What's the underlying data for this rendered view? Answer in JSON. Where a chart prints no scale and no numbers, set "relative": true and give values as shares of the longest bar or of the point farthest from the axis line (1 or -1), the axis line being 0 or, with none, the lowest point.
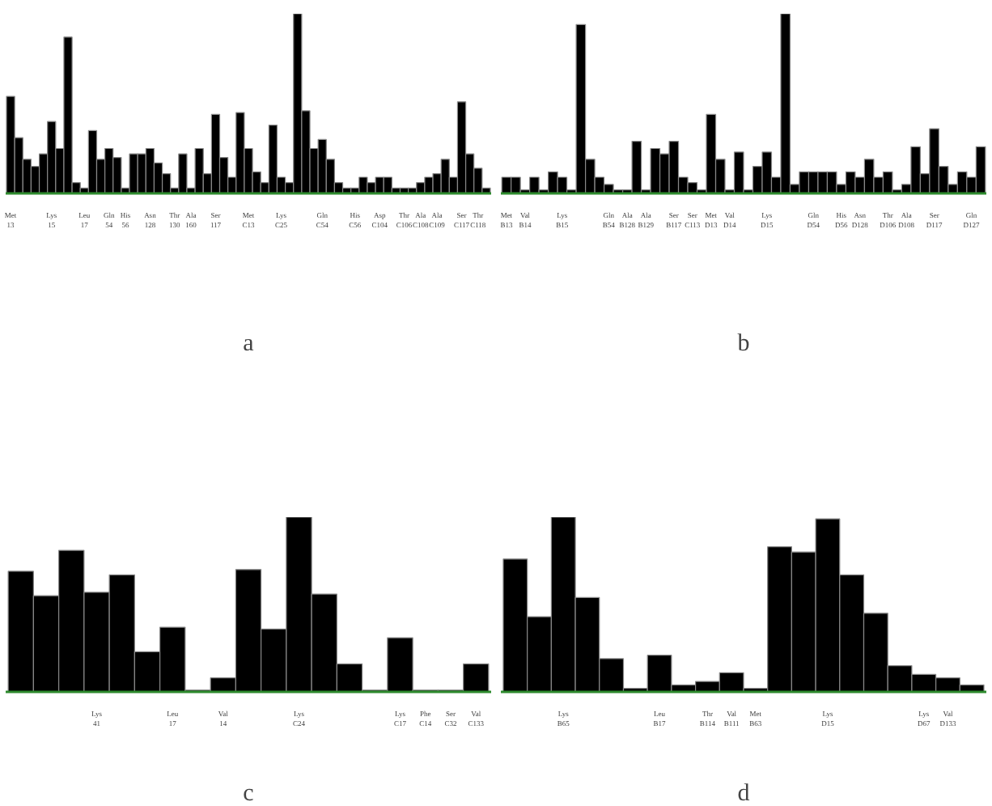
{
  "chart_data": [
    {
      "type": "bar",
      "title": "a",
      "relative": true,
      "color": "#000000",
      "categories": [
        "Met\n13",
        null,
        null,
        null,
        null,
        "Lys\n15",
        null,
        null,
        null,
        "Leu\n17",
        null,
        null,
        "Gln\n54",
        null,
        "His\n56",
        null,
        null,
        "Asn\n128",
        null,
        null,
        "Thr\n130",
        null,
        "Ala\n160",
        null,
        null,
        "Ser\n117",
        null,
        null,
        null,
        "Met\nC13",
        null,
        null,
        null,
        "Lys\nC25",
        null,
        null,
        null,
        null,
        "Gln\nC54",
        null,
        null,
        null,
        "His\nC56",
        null,
        null,
        "Asp\nC104",
        null,
        null,
        "Thr\nC106",
        null,
        "Ala\nC108",
        null,
        "Ala\nC109",
        null,
        null,
        "Ser\nC117",
        null,
        "Thr\nC118",
        null
      ],
      "values": [
        0.54,
        0.31,
        0.19,
        0.15,
        0.22,
        0.4,
        0.25,
        0.87,
        0.06,
        0.03,
        0.35,
        0.19,
        0.25,
        0.2,
        0.03,
        0.22,
        0.22,
        0.25,
        0.17,
        0.11,
        0.03,
        0.22,
        0.03,
        0.25,
        0.11,
        0.44,
        0.2,
        0.09,
        0.45,
        0.25,
        0.12,
        0.06,
        0.38,
        0.09,
        0.06,
        1,
        0.46,
        0.25,
        0.3,
        0.19,
        0.06,
        0.03,
        0.03,
        0.09,
        0.06,
        0.09,
        0.09,
        0.03,
        0.03,
        0.03,
        0.06,
        0.09,
        0.11,
        0.19,
        0.09,
        0.51,
        0.22,
        0.14,
        0.03
      ]
    },
    {
      "type": "bar",
      "title": "b",
      "relative": true,
      "color": "#000000",
      "categories": [
        "Met\nB13",
        null,
        "Val\nB14",
        null,
        null,
        null,
        "Lys\nB15",
        null,
        null,
        null,
        null,
        "Gln\nB54",
        null,
        "Ala\nB128",
        null,
        "Ala\nB129",
        null,
        null,
        "Ser\nB117",
        null,
        "Ser\nC113",
        null,
        "Met\nD13",
        null,
        "Val\nD14",
        null,
        null,
        null,
        "Lys\nD15",
        null,
        null,
        null,
        null,
        "Gln\nD54",
        null,
        null,
        "His\nD56",
        null,
        "Asn\nD128",
        null,
        null,
        "Thr\nD106",
        null,
        "Ala\nD108",
        null,
        null,
        "Ser\nD117",
        null,
        null,
        null,
        "Gln\nD127",
        null
      ],
      "values": [
        0.09,
        0.09,
        0.02,
        0.09,
        0.02,
        0.12,
        0.09,
        0.02,
        0.94,
        0.19,
        0.09,
        0.05,
        0.02,
        0.02,
        0.29,
        0.02,
        0.25,
        0.22,
        0.29,
        0.09,
        0.06,
        0.02,
        0.44,
        0.19,
        0.02,
        0.23,
        0.02,
        0.15,
        0.23,
        0.09,
        1,
        0.05,
        0.12,
        0.12,
        0.12,
        0.12,
        0.05,
        0.12,
        0.09,
        0.19,
        0.09,
        0.12,
        0.02,
        0.05,
        0.26,
        0.11,
        0.36,
        0.15,
        0.05,
        0.12,
        0.09,
        0.26
      ]
    },
    {
      "type": "bar",
      "title": "c",
      "relative": true,
      "color": "#000000",
      "categories": [
        null,
        null,
        null,
        "Lys\n41",
        null,
        null,
        "Leu\n17",
        null,
        "Val\n14",
        null,
        null,
        "Lys\nC24",
        null,
        null,
        null,
        "Lys\nC17",
        "Phe\nC14",
        "Ser\nC32",
        "Val\nC133"
      ],
      "values": [
        0.69,
        0.55,
        0.81,
        0.57,
        0.67,
        0.23,
        0.37,
        0.01,
        0.08,
        0.7,
        0.36,
        1,
        0.56,
        0.16,
        0.01,
        0.31,
        0.01,
        0.01,
        0.16
      ]
    },
    {
      "type": "bar",
      "title": "d",
      "relative": true,
      "color": "#000000",
      "categories": [
        null,
        null,
        "Lys\nB65",
        null,
        null,
        null,
        "Leu\nB17",
        null,
        "Thr\nB114",
        "Val\nB111",
        "Met\nB63",
        null,
        null,
        "Lys\nD15",
        null,
        null,
        null,
        "Lys\nD67",
        "Val\nD133",
        null
      ],
      "values": [
        0.76,
        0.43,
        1,
        0.54,
        0.19,
        0.02,
        0.21,
        0.04,
        0.06,
        0.11,
        0.02,
        0.83,
        0.8,
        0.99,
        0.67,
        0.45,
        0.15,
        0.1,
        0.08,
        0.04
      ]
    }
  ]
}
